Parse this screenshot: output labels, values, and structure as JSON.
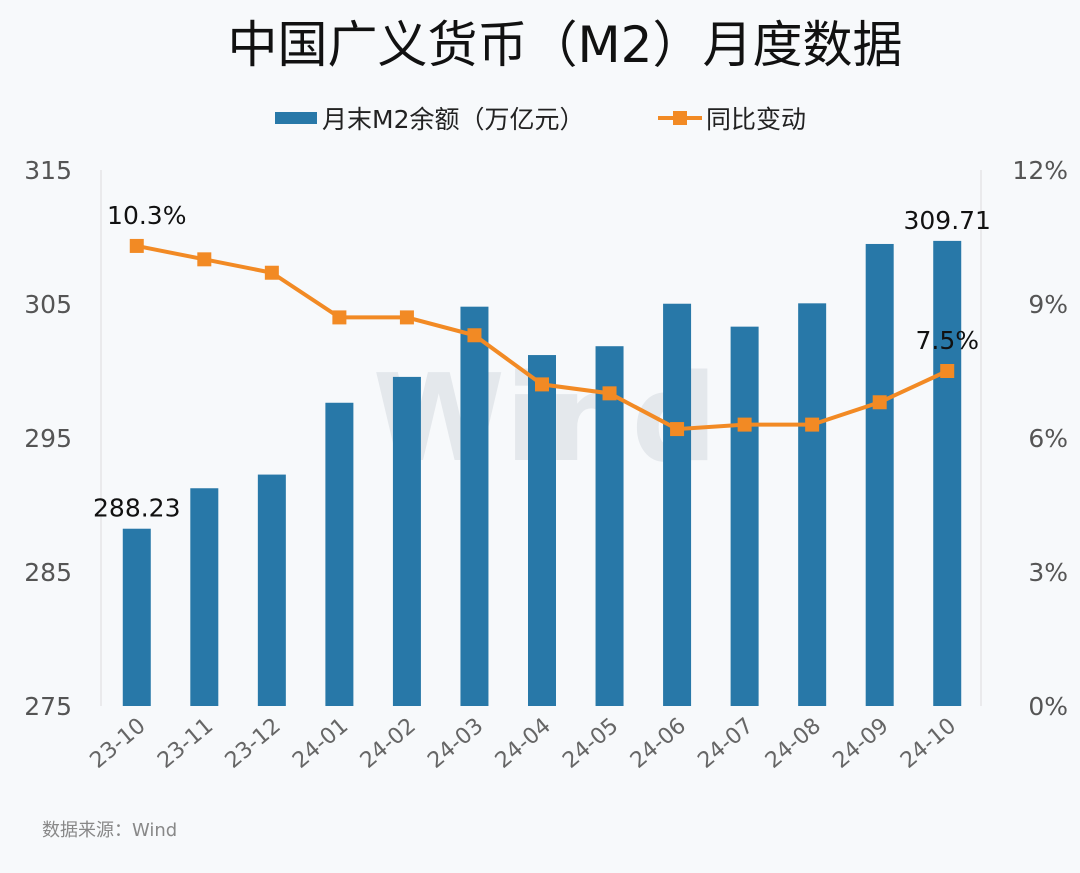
{
  "chart_data": {
    "type": "bar+line",
    "title": "中国广义货币（M2）月度数据",
    "categories": [
      "23-10",
      "23-11",
      "23-12",
      "24-01",
      "24-02",
      "24-03",
      "24-04",
      "24-05",
      "24-06",
      "24-07",
      "24-08",
      "24-09",
      "24-10"
    ],
    "series": [
      {
        "name": "月末M2余额（万亿元）",
        "type": "bar",
        "axis": "left",
        "color": "#2878a8",
        "values": [
          288.23,
          291.25,
          292.27,
          297.63,
          299.56,
          304.8,
          301.19,
          301.85,
          305.02,
          303.31,
          305.05,
          309.48,
          309.71
        ]
      },
      {
        "name": "同比变动",
        "type": "line",
        "axis": "right",
        "color": "#f28a24",
        "values": [
          10.3,
          10.0,
          9.7,
          8.7,
          8.7,
          8.3,
          7.2,
          7.0,
          6.2,
          6.3,
          6.3,
          6.8,
          7.5
        ]
      }
    ],
    "left_axis": {
      "min": 275,
      "max": 315,
      "ticks": [
        "275",
        "285",
        "295",
        "305",
        "315"
      ]
    },
    "right_axis": {
      "min": 0,
      "max": 12,
      "unit": "%",
      "ticks": [
        "0%",
        "3%",
        "6%",
        "9%",
        "12%"
      ]
    },
    "data_labels": [
      {
        "series": 0,
        "index": 0,
        "text": "288.23"
      },
      {
        "series": 0,
        "index": 12,
        "text": "309.71"
      },
      {
        "series": 1,
        "index": 0,
        "text": "10.3%"
      },
      {
        "series": 1,
        "index": 12,
        "text": "7.5%"
      }
    ],
    "legend_position": "top",
    "grid": false,
    "watermark": "Wind",
    "source": "数据来源：Wind"
  }
}
